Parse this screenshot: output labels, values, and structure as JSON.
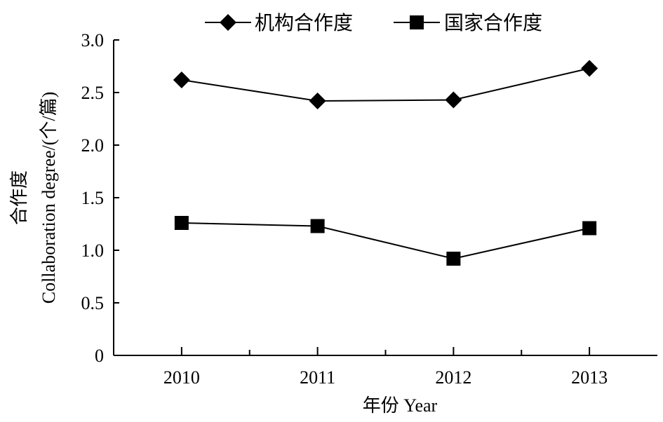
{
  "chart_data": {
    "type": "line",
    "categories": [
      "2010",
      "2011",
      "2012",
      "2013"
    ],
    "series": [
      {
        "name": "机构合作度",
        "values": [
          2.62,
          2.42,
          2.43,
          2.73
        ],
        "marker": "diamond",
        "color": "#000000"
      },
      {
        "name": "国家合作度",
        "values": [
          1.26,
          1.23,
          0.92,
          1.21
        ],
        "marker": "square",
        "color": "#000000"
      }
    ],
    "xlabel": "年份 Year",
    "ylabel_cn": "合作度",
    "ylabel": "Collaboration degree/(个/篇)",
    "ylim": [
      0,
      3.0
    ],
    "yticks": [
      "0",
      "0.5",
      "1.0",
      "1.5",
      "2.0",
      "2.5",
      "3.0"
    ],
    "yticks_values": [
      0,
      0.5,
      1.0,
      1.5,
      2.0,
      2.5,
      3.0
    ],
    "grid": false,
    "legend_position": "top"
  }
}
